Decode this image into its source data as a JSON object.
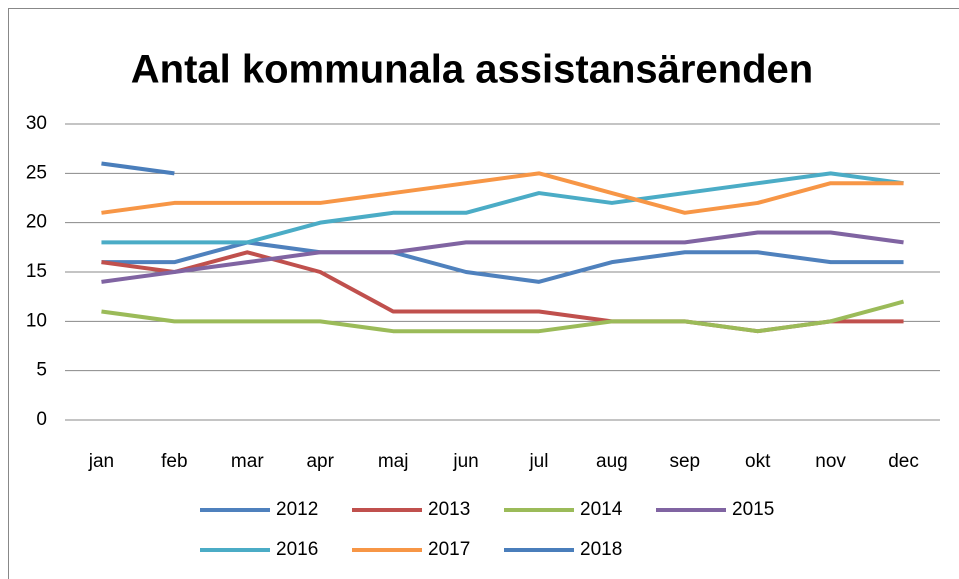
{
  "chart_data": {
    "type": "line",
    "title": "Antal kommunala assistansärenden",
    "categories": [
      "jan",
      "feb",
      "mar",
      "apr",
      "maj",
      "jun",
      "jul",
      "aug",
      "sep",
      "okt",
      "nov",
      "dec"
    ],
    "ylim": [
      0,
      30
    ],
    "yticks": [
      0,
      5,
      10,
      15,
      20,
      25,
      30
    ],
    "grid": true,
    "series": [
      {
        "name": "2012",
        "color": "#4f81bd",
        "values": [
          16,
          16,
          18,
          17,
          17,
          15,
          14,
          16,
          17,
          17,
          16,
          16
        ]
      },
      {
        "name": "2013",
        "color": "#c0504d",
        "values": [
          16,
          15,
          17,
          15,
          11,
          11,
          11,
          10,
          10,
          9,
          10,
          10
        ]
      },
      {
        "name": "2014",
        "color": "#9bbb59",
        "values": [
          11,
          10,
          10,
          10,
          9,
          9,
          9,
          10,
          10,
          9,
          10,
          12
        ]
      },
      {
        "name": "2015",
        "color": "#8064a2",
        "values": [
          14,
          15,
          16,
          17,
          17,
          18,
          18,
          18,
          18,
          19,
          19,
          18
        ]
      },
      {
        "name": "2016",
        "color": "#4bacc6",
        "values": [
          18,
          18,
          18,
          20,
          21,
          21,
          23,
          22,
          23,
          24,
          25,
          24
        ]
      },
      {
        "name": "2017",
        "color": "#f79646",
        "values": [
          21,
          22,
          22,
          22,
          23,
          24,
          25,
          23,
          21,
          22,
          24,
          24
        ]
      },
      {
        "name": "2018",
        "color": "#4a7ebb",
        "values": [
          26,
          25,
          null,
          null,
          null,
          null,
          null,
          null,
          null,
          null,
          null,
          null
        ]
      }
    ]
  }
}
